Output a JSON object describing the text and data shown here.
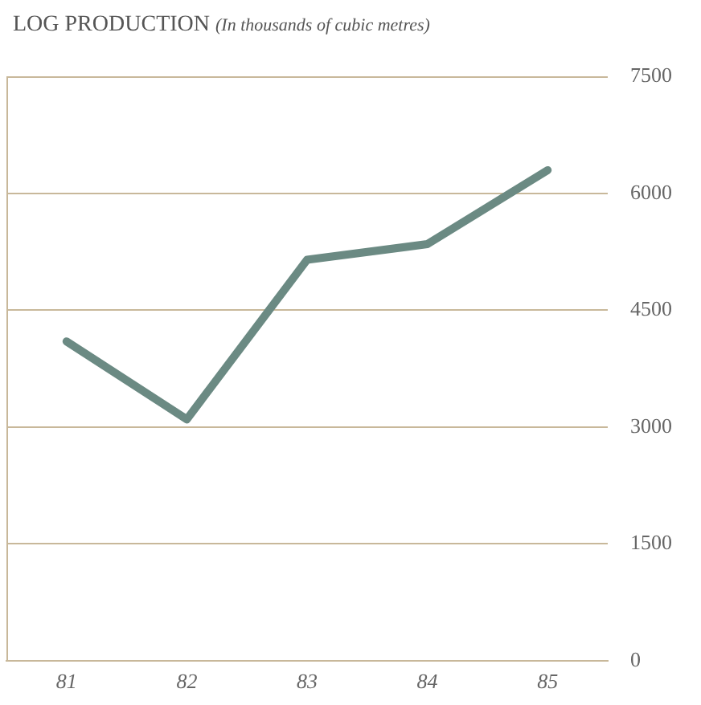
{
  "chart_data": {
    "type": "line",
    "title": "LOG PRODUCTION",
    "subtitle": "(In thousands of cubic metres)",
    "categories": [
      "81",
      "82",
      "83",
      "84",
      "85"
    ],
    "series": [
      {
        "color": "#6b8a83",
        "values": [
          4100,
          3100,
          5150,
          5350,
          6300
        ]
      }
    ],
    "ylim": [
      0,
      7500
    ],
    "yticks": [
      0,
      1500,
      3000,
      4500,
      6000,
      7500
    ],
    "grid": "y",
    "legend": false,
    "marker": "none",
    "line_style": "solid"
  }
}
